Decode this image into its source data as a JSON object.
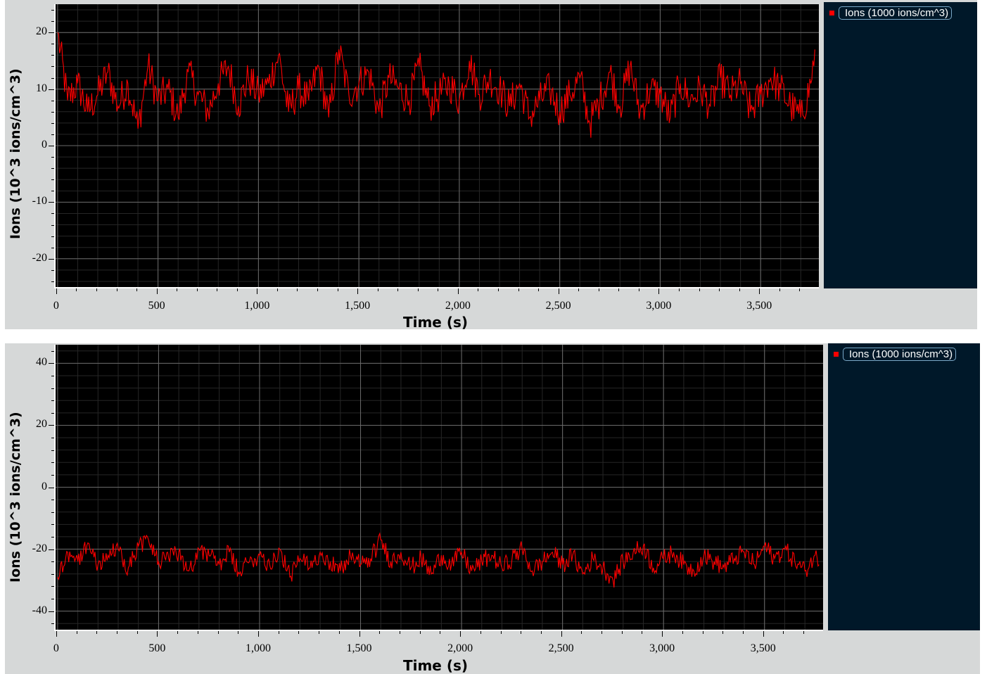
{
  "chart_data": [
    {
      "type": "line",
      "xlabel": "Time (s)",
      "ylabel": "Ions (10^3 ions/cm^3)",
      "xlim": [
        -10,
        3790
      ],
      "ylim": [
        -25,
        25
      ],
      "xticks": [
        0,
        500,
        1000,
        1500,
        2000,
        2500,
        3000,
        3500
      ],
      "xtick_labels": [
        "0",
        "500",
        "1,000",
        "1,500",
        "2,000",
        "2,500",
        "3,000",
        "3,500"
      ],
      "yticks": [
        20,
        10,
        0,
        -10,
        -20
      ],
      "ytick_labels": [
        "20",
        "10",
        "0",
        "-10",
        "-20"
      ],
      "grid": true,
      "legend_position": "right",
      "series_color": "#ff0000",
      "series": [
        {
          "name": "Ions (1000 ions/cm^3)",
          "x": [
            0,
            50,
            100,
            150,
            200,
            250,
            300,
            350,
            400,
            450,
            500,
            550,
            600,
            650,
            700,
            750,
            800,
            850,
            900,
            950,
            1000,
            1050,
            1100,
            1150,
            1200,
            1250,
            1300,
            1350,
            1400,
            1450,
            1500,
            1550,
            1600,
            1650,
            1700,
            1750,
            1800,
            1850,
            1900,
            1950,
            2000,
            2050,
            2100,
            2150,
            2200,
            2250,
            2300,
            2350,
            2400,
            2450,
            2500,
            2550,
            2600,
            2650,
            2700,
            2750,
            2800,
            2850,
            2900,
            2950,
            3000,
            3050,
            3100,
            3150,
            3200,
            3250,
            3300,
            3350,
            3400,
            3450,
            3500,
            3550,
            3600,
            3650,
            3700,
            3750,
            3770
          ],
          "y": [
            20,
            8,
            11,
            6,
            9,
            13,
            7,
            11,
            3,
            14,
            8,
            10,
            5,
            13,
            9,
            6,
            11,
            14,
            7,
            12,
            9,
            11,
            16,
            6,
            10,
            8,
            14,
            5,
            17,
            9,
            11,
            13,
            6,
            12,
            10,
            8,
            14,
            7,
            9,
            11,
            8,
            15,
            9,
            12,
            10,
            7,
            11,
            5,
            8,
            10,
            6,
            9,
            12,
            4,
            8,
            13,
            7,
            14,
            6,
            10,
            9,
            5,
            11,
            8,
            10,
            7,
            12,
            9,
            11,
            6,
            9,
            12,
            10,
            7,
            5,
            11,
            17
          ]
        }
      ]
    },
    {
      "type": "line",
      "xlabel": "Time (s)",
      "ylabel": "Ions (10^3 ions/cm^3)",
      "xlim": [
        -10,
        3790
      ],
      "ylim": [
        -46,
        46
      ],
      "xticks": [
        0,
        500,
        1000,
        1500,
        2000,
        2500,
        3000,
        3500
      ],
      "xtick_labels": [
        "0",
        "500",
        "1,000",
        "1,500",
        "2,000",
        "2,500",
        "3,000",
        "3,500"
      ],
      "yticks": [
        40,
        20,
        0,
        -20,
        -40
      ],
      "ytick_labels": [
        "40",
        "20",
        "0",
        "-20",
        "-40"
      ],
      "grid": true,
      "legend_position": "right",
      "series_color": "#ff0000",
      "series": [
        {
          "name": "Ions (1000 ions/cm^3)",
          "x": [
            0,
            50,
            100,
            150,
            200,
            250,
            300,
            350,
            400,
            450,
            500,
            550,
            600,
            650,
            700,
            750,
            800,
            850,
            900,
            950,
            1000,
            1050,
            1100,
            1150,
            1200,
            1250,
            1300,
            1350,
            1400,
            1450,
            1500,
            1550,
            1600,
            1650,
            1700,
            1750,
            1800,
            1850,
            1900,
            1950,
            2000,
            2050,
            2100,
            2150,
            2200,
            2250,
            2300,
            2350,
            2400,
            2450,
            2500,
            2550,
            2600,
            2650,
            2700,
            2750,
            2800,
            2850,
            2900,
            2950,
            3000,
            3050,
            3100,
            3150,
            3200,
            3250,
            3300,
            3350,
            3400,
            3450,
            3500,
            3550,
            3600,
            3650,
            3700,
            3750,
            3770
          ],
          "y": [
            -29,
            -21,
            -24,
            -18,
            -25,
            -22,
            -20,
            -26,
            -19,
            -17,
            -24,
            -23,
            -21,
            -27,
            -20,
            -22,
            -25,
            -21,
            -28,
            -24,
            -22,
            -25,
            -20,
            -29,
            -23,
            -26,
            -21,
            -24,
            -27,
            -22,
            -25,
            -23,
            -17,
            -24,
            -21,
            -26,
            -23,
            -28,
            -22,
            -25,
            -21,
            -27,
            -24,
            -22,
            -26,
            -23,
            -20,
            -27,
            -24,
            -21,
            -25,
            -22,
            -28,
            -23,
            -26,
            -30,
            -24,
            -21,
            -19,
            -26,
            -23,
            -21,
            -25,
            -27,
            -22,
            -24,
            -26,
            -23,
            -21,
            -25,
            -19,
            -23,
            -20,
            -24,
            -27,
            -22,
            -25
          ]
        }
      ]
    }
  ]
}
